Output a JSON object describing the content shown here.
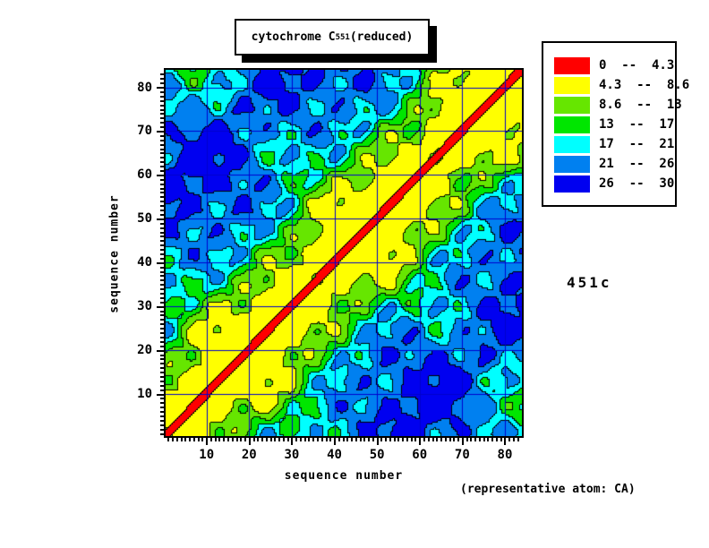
{
  "title": {
    "prefix": "cytochrome C",
    "subscript": "551",
    "suffix": " (reduced)"
  },
  "axes": {
    "xlabel": "sequence number",
    "ylabel": "sequence number",
    "x_ticks": [
      10,
      20,
      30,
      40,
      50,
      60,
      70,
      80
    ],
    "y_ticks": [
      10,
      20,
      30,
      40,
      50,
      60,
      70,
      80
    ]
  },
  "legend": {
    "bins": [
      {
        "color": "#ff0000",
        "label": "0  --  4.3"
      },
      {
        "color": "#ffff00",
        "label": "4.3  --  8.6"
      },
      {
        "color": "#66e600",
        "label": "8.6  --  13"
      },
      {
        "color": "#00e600",
        "label": "13  --  17"
      },
      {
        "color": "#00ffff",
        "label": "17  --  21"
      },
      {
        "color": "#0080f0",
        "label": "21  --  26"
      },
      {
        "color": "#0000f0",
        "label": "26  --  30"
      }
    ]
  },
  "annotations": {
    "structure_id": "451c",
    "footnote": "(representative atom: CA)"
  },
  "chart_data": {
    "type": "heatmap",
    "subtype": "filled-contour distance matrix (CA-CA contact map)",
    "title": "cytochrome C 551 (reduced)",
    "xlabel": "sequence number",
    "ylabel": "sequence number",
    "x_ticks": [
      10,
      20,
      30,
      40,
      50,
      60,
      70,
      80
    ],
    "y_ticks": [
      10,
      20,
      30,
      40,
      50,
      60,
      70,
      80
    ],
    "x_range": [
      1,
      83
    ],
    "y_range": [
      1,
      83
    ],
    "contour_levels": [
      0,
      4.3,
      8.6,
      13,
      17,
      21,
      26,
      30
    ],
    "level_colors": [
      "#ff0000",
      "#ffff00",
      "#66e600",
      "#00e600",
      "#00ffff",
      "#0080f0",
      "#0000f0"
    ],
    "legend_position": "top-right",
    "grid": true,
    "grid_color": "#0000cc",
    "contour_outline_color": "#000000",
    "features": [
      "red band (distance 0 -- 4.3) runs along the main diagonal from bottom-left to top-right",
      "matrix is symmetric about the main diagonal",
      "yellow/yellow-green bands border the diagonal; green, cyan, blue and dark-blue regions appear farther off-diagonal",
      "dark blue patches (26 -- 30) occur around sequence separations of roughly 30-60 residues"
    ]
  }
}
